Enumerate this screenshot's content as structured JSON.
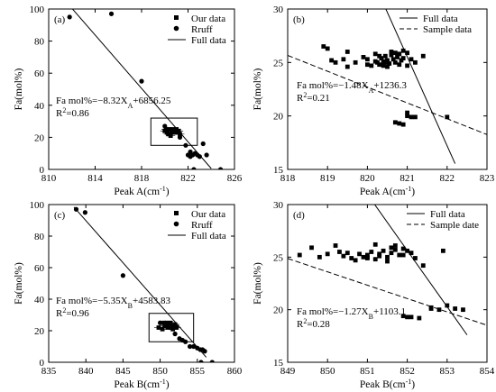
{
  "chart_data": [
    {
      "id": "a",
      "type": "scatter",
      "panel_label": "(a)",
      "xlabel": "Peak A(cm",
      "xlabel_sup": "-1",
      "ylabel": "Fa(mol%)",
      "xlim": [
        810,
        826
      ],
      "ylim": [
        0,
        100
      ],
      "xticks": [
        "810",
        "814",
        "818",
        "822",
        "826"
      ],
      "yticks": [
        "0",
        "20",
        "40",
        "60",
        "80",
        "100"
      ],
      "legend_position": "top-right",
      "legend": [
        {
          "label": "Our data",
          "marker": "square"
        },
        {
          "label": "Rruff",
          "marker": "circle"
        },
        {
          "label": "Full data",
          "marker": "solid-line"
        }
      ],
      "series": [
        {
          "name": "Our data",
          "marker": "square",
          "x": [
            820.0,
            820.2,
            820.4,
            820.5,
            820.6,
            820.8,
            821.0,
            821.2,
            820.3,
            820.7,
            821.1,
            820.9,
            820.1,
            820.5,
            821.3
          ],
          "y": [
            24,
            23,
            25,
            22,
            24,
            23,
            25,
            24,
            22,
            25,
            23,
            24,
            25,
            21,
            22
          ]
        },
        {
          "name": "Rruff",
          "marker": "circle",
          "x": [
            811.8,
            815.4,
            818.0,
            820.0,
            821.3,
            821.8,
            822.0,
            822.2,
            822.4,
            822.6,
            822.8,
            823.0,
            823.3,
            823.6,
            822.5,
            822.2,
            824.8
          ],
          "y": [
            95,
            97,
            55,
            27,
            20,
            15,
            9,
            11,
            9,
            10,
            9,
            8,
            16,
            9,
            0,
            8,
            0
          ]
        }
      ],
      "fit_line": {
        "name": "Full data",
        "style": "solid",
        "slope": -8.32,
        "intercept": 6856.25,
        "x_range": [
          811.2,
          824.0
        ]
      },
      "equation": "Fa mol%=−8.32X",
      "equation_sub": "A",
      "equation_tail": "+6856.25",
      "r2_label": "R",
      "r2_sup": "2",
      "r2_value": "=0.86",
      "inset_box": {
        "x": [
          818.8,
          822.8
        ],
        "y": [
          15,
          32
        ]
      }
    },
    {
      "id": "b",
      "type": "scatter",
      "panel_label": "(b)",
      "xlabel": "Peak A(cm",
      "xlabel_sup": "-1",
      "ylabel": "Fa(mol%)",
      "xlim": [
        818,
        823
      ],
      "ylim": [
        15,
        30
      ],
      "xticks": [
        "818",
        "819",
        "820",
        "821",
        "822",
        "823"
      ],
      "yticks": [
        "15",
        "20",
        "25",
        "30"
      ],
      "legend_position": "top-right",
      "legend": [
        {
          "label": "Full data",
          "marker": "solid-line"
        },
        {
          "label": "Sample data",
          "marker": "dashed-line"
        }
      ],
      "series": [
        {
          "name": "Our data",
          "marker": "square",
          "x": [
            818.9,
            819.0,
            819.1,
            819.4,
            819.5,
            819.7,
            819.9,
            820.0,
            820.1,
            820.2,
            820.25,
            820.3,
            820.35,
            820.4,
            820.45,
            820.5,
            820.55,
            820.6,
            820.65,
            820.7,
            820.75,
            820.8,
            820.85,
            820.9,
            821.0,
            821.1,
            821.2,
            821.4,
            820.3,
            820.5,
            820.6,
            820.7,
            820.9,
            821.0,
            820.2,
            820.4,
            820.8,
            819.2,
            819.5,
            820.0,
            820.5,
            820.7,
            820.8,
            820.9,
            821.0,
            821.1,
            821.2,
            822.0,
            821.0
          ],
          "y": [
            26.5,
            26.3,
            25.2,
            25.3,
            26.0,
            25.0,
            25.5,
            25.3,
            24.7,
            25.8,
            25.0,
            24.8,
            25.4,
            25.1,
            25.6,
            25.2,
            24.9,
            25.7,
            25.3,
            25.0,
            25.5,
            24.8,
            25.2,
            25.4,
            25.9,
            25.3,
            25.0,
            25.6,
            25.6,
            24.6,
            26.0,
            25.9,
            26.1,
            24.7,
            25.1,
            24.7,
            25.8,
            25.0,
            24.6,
            24.8,
            25.0,
            19.4,
            19.3,
            19.2,
            20.0,
            19.9,
            19.9,
            19.9,
            20.3
          ]
        }
      ],
      "fit_lines": [
        {
          "name": "Full data",
          "style": "solid",
          "slope": -8.32,
          "intercept": 6856.25,
          "x_range": [
            820.2,
            822.2
          ]
        },
        {
          "name": "Sample data",
          "style": "dashed",
          "slope": -1.48,
          "intercept": 1236.3,
          "x_range": [
            818,
            823
          ]
        }
      ],
      "equation": "Fa mol%=−1.48X",
      "equation_sub": "A",
      "equation_tail": "+1236.3",
      "r2_label": "R",
      "r2_sup": "2",
      "r2_value": "=0.21"
    },
    {
      "id": "c",
      "type": "scatter",
      "panel_label": "(c)",
      "xlabel": "Peak B(cm",
      "xlabel_sup": "-1",
      "ylabel": "Fa(mol%)",
      "xlim": [
        835,
        860
      ],
      "ylim": [
        0,
        100
      ],
      "xticks": [
        "835",
        "840",
        "845",
        "850",
        "855",
        "860"
      ],
      "yticks": [
        "0",
        "20",
        "40",
        "60",
        "80",
        "100"
      ],
      "legend_position": "top-right",
      "legend": [
        {
          "label": "Our data",
          "marker": "square"
        },
        {
          "label": "Rruff",
          "marker": "circle"
        },
        {
          "label": "Full data",
          "marker": "solid-line"
        }
      ],
      "series": [
        {
          "name": "Our data",
          "marker": "square",
          "x": [
            849.8,
            850.3,
            850.6,
            850.9,
            851.2,
            851.5,
            851.8,
            852.0,
            850.5,
            851.0,
            851.4,
            851.7,
            850.8,
            851.2,
            852.2
          ],
          "y": [
            22,
            21,
            23,
            25,
            24,
            23,
            22,
            24,
            25,
            22,
            25,
            21,
            24,
            23,
            22
          ]
        },
        {
          "name": "Rruff",
          "marker": "circle",
          "x": [
            838.7,
            839.9,
            845.0,
            850.0,
            851.3,
            852.0,
            852.6,
            853.0,
            853.4,
            854.0,
            854.5,
            855.0,
            855.4,
            855.7,
            856.0,
            857.0,
            855.5
          ],
          "y": [
            97,
            95,
            55,
            25,
            22,
            18,
            15,
            14,
            13,
            10,
            10,
            9,
            8,
            8,
            7,
            0,
            0
          ]
        }
      ],
      "fit_line": {
        "name": "Full data",
        "style": "solid",
        "slope": -5.35,
        "intercept": 4583.83,
        "x_range": [
          838.4,
          856.2
        ]
      },
      "equation": "Fa mol%=−5.35X",
      "equation_sub": "B",
      "equation_tail": "+4583.83",
      "r2_label": "R",
      "r2_sup": "2",
      "r2_value": "=0.96",
      "inset_box": {
        "x": [
          848.5,
          854.5
        ],
        "y": [
          13,
          31
        ]
      }
    },
    {
      "id": "d",
      "type": "scatter",
      "panel_label": "(d)",
      "xlabel": "Peak B(cm",
      "xlabel_sup": "-1",
      "ylabel": "Fa(mol%)",
      "xlim": [
        849,
        854
      ],
      "ylim": [
        15,
        30
      ],
      "xticks": [
        "849",
        "850",
        "851",
        "852",
        "853",
        "854"
      ],
      "yticks": [
        "15",
        "20",
        "25",
        "30"
      ],
      "legend_position": "top-right",
      "legend": [
        {
          "label": "Full data",
          "marker": "solid-line"
        },
        {
          "label": "Sample date",
          "marker": "dashed-line"
        }
      ],
      "series": [
        {
          "name": "Our data",
          "marker": "square",
          "x": [
            849.3,
            849.6,
            849.8,
            850.0,
            850.2,
            850.4,
            850.5,
            850.6,
            850.8,
            850.9,
            851.0,
            851.1,
            851.2,
            851.3,
            851.4,
            851.5,
            851.6,
            851.7,
            851.8,
            851.9,
            852.0,
            852.1,
            852.2,
            850.3,
            850.7,
            851.0,
            851.2,
            851.5,
            851.7,
            851.9,
            851.0,
            851.3,
            851.6,
            852.4,
            852.6,
            852.9,
            853.0,
            853.2,
            853.4,
            851.9,
            852.0,
            852.1,
            852.3,
            852.6,
            852.8
          ],
          "y": [
            25.2,
            25.9,
            25.0,
            25.3,
            26.1,
            25.1,
            25.4,
            24.9,
            25.3,
            25.0,
            25.2,
            25.5,
            24.8,
            25.1,
            25.6,
            25.0,
            25.4,
            25.7,
            25.2,
            25.8,
            25.6,
            25.4,
            24.9,
            25.5,
            24.7,
            24.9,
            26.2,
            24.6,
            26.1,
            25.2,
            25.0,
            25.3,
            25.9,
            24.2,
            20.2,
            25.6,
            20.4,
            20.1,
            20.0,
            19.4,
            19.3,
            19.3,
            19.2,
            20.1,
            20.0
          ]
        }
      ],
      "fit_lines": [
        {
          "name": "Full data",
          "style": "solid",
          "slope": -5.35,
          "intercept": 4583.83,
          "x_range": [
            850.7,
            853.5
          ]
        },
        {
          "name": "Sample date",
          "style": "dashed",
          "slope": -1.27,
          "intercept": 1103.1,
          "x_range": [
            849,
            854
          ]
        }
      ],
      "equation": "Fa mol%=−1.27X",
      "equation_sub": "B",
      "equation_tail": "+1103.1",
      "r2_label": "R",
      "r2_sup": "2",
      "r2_value": "=0.28"
    }
  ]
}
